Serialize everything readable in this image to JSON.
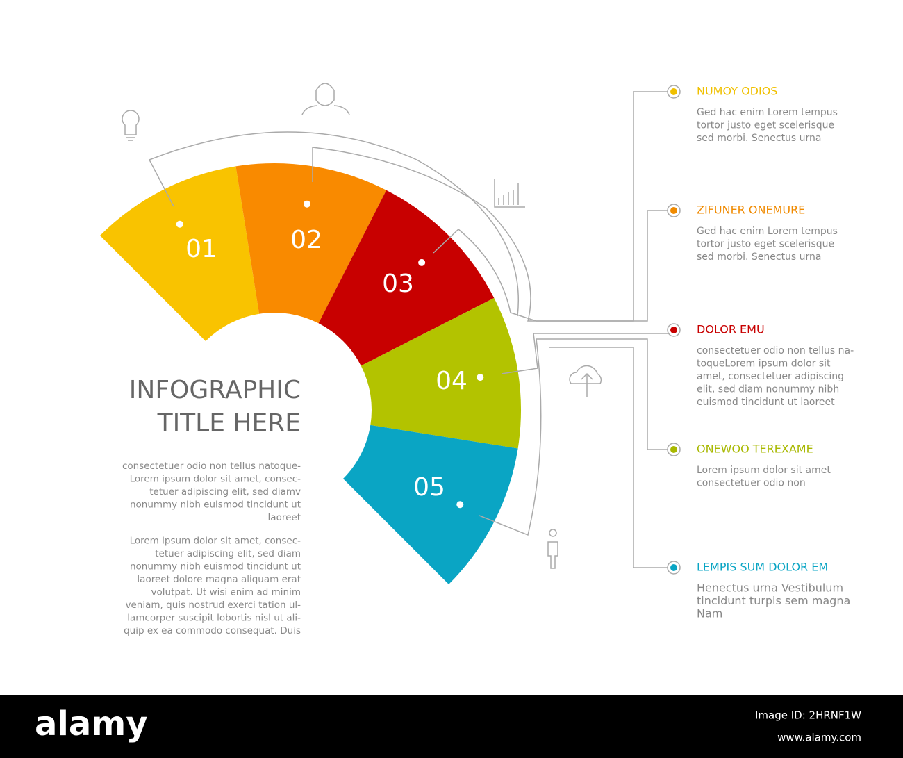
{
  "title": [
    "INFOGRAPHIC",
    "TITLE HERE"
  ],
  "paragraphs": [
    [
      "consectetuer odio non tellus natoque-",
      "Lorem ipsum dolor sit amet, consec-",
      "tetuer adipiscing elit, sed diamv",
      "nonummy nibh euismod tincidunt ut",
      "laoreet"
    ],
    [
      "Lorem ipsum dolor sit amet, consec-",
      "tetuer adipiscing elit, sed diam",
      "nonummy nibh euismod tincidunt ut",
      "laoreet dolore magna aliquam erat",
      "volutpat. Ut wisi enim ad minim",
      "veniam, quis nostrud exerci tation ul-",
      "lamcorper suscipit lobortis nisl ut ali-",
      "quip ex ea commodo consequat. Duis"
    ]
  ],
  "segments": [
    {
      "label": "01",
      "color": "#f9c300"
    },
    {
      "label": "02",
      "color": "#f98a00"
    },
    {
      "label": "03",
      "color": "#c80000"
    },
    {
      "label": "04",
      "color": "#b3c300"
    },
    {
      "label": "05",
      "color": "#0aa5c4"
    }
  ],
  "items": [
    {
      "heading": "NUMOY ODIOS",
      "color": "#f0c000",
      "body": [
        "Ged hac enim Lorem tempus",
        "tortor justo eget scelerisque",
        "sed morbi. Senectus urna"
      ]
    },
    {
      "heading": "ZIFUNER ONEMURE",
      "color": "#f08a00",
      "body": [
        "Ged hac enim Lorem tempus",
        "tortor justo eget scelerisque",
        "sed morbi. Senectus urna"
      ]
    },
    {
      "heading": "DOLOR EMU",
      "color": "#c80000",
      "body": [
        "consectetuer odio non tellus na-",
        "toqueLorem ipsum dolor sit",
        "amet, consectetuer adipiscing",
        "elit, sed diam nonummy nibh",
        "euismod tincidunt ut laoreet"
      ]
    },
    {
      "heading": "ONEWOO TEREXAME",
      "color": "#a8b800",
      "body": [
        "Lorem ipsum dolor sit amet",
        "consectetuer odio non"
      ]
    },
    {
      "heading": "LEMPIS SUM DOLOR EM",
      "color": "#0aa5c4",
      "body": [
        "Henectus urna Vestibulum",
        "tincidunt turpis sem magna",
        "Nam"
      ]
    }
  ],
  "footer": {
    "brand": "alamy",
    "image_id": "Image ID: 2HRNF1W",
    "url": "www.alamy.com"
  }
}
